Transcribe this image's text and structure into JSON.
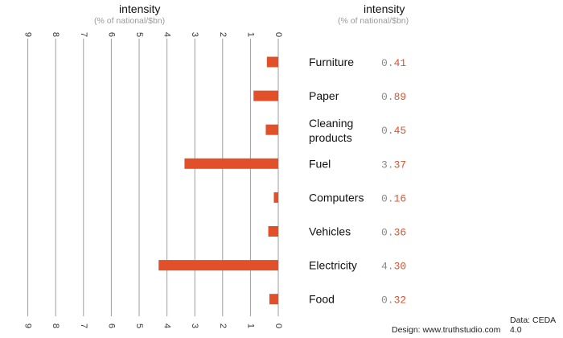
{
  "header": {
    "left_title": "intensity",
    "left_subtitle": "(% of national/$bn)",
    "right_title": "intensity",
    "right_subtitle": "(% of national/$bn)"
  },
  "footer": {
    "design": "Design: www.truthstudio.com",
    "data": "Data: CEDA 4.0"
  },
  "colors": {
    "bar": "#e2502a",
    "axis_line": "#9e9e9e",
    "value_whole": "#8a8a8a",
    "value_fraction": "#e2502a"
  },
  "chart_data": {
    "type": "bar",
    "orientation": "horizontal",
    "direction": "right-to-left",
    "categories": [
      [
        "Furniture"
      ],
      [
        "Paper"
      ],
      [
        "Cleaning",
        "products"
      ],
      [
        "Fuel"
      ],
      [
        "Computers"
      ],
      [
        "Vehicles"
      ],
      [
        "Electricity"
      ],
      [
        "Food"
      ]
    ],
    "values": [
      0.41,
      0.89,
      0.45,
      3.37,
      0.16,
      0.36,
      4.3,
      0.32
    ],
    "value_labels": [
      "0.41",
      "0.89",
      "0.45",
      "3.37",
      "0.16",
      "0.36",
      "4.30",
      "0.32"
    ],
    "ticks": [
      9,
      8,
      7,
      6,
      5,
      4,
      3,
      2,
      1,
      0
    ],
    "xlim": [
      0,
      9
    ],
    "grid": "vertical"
  }
}
